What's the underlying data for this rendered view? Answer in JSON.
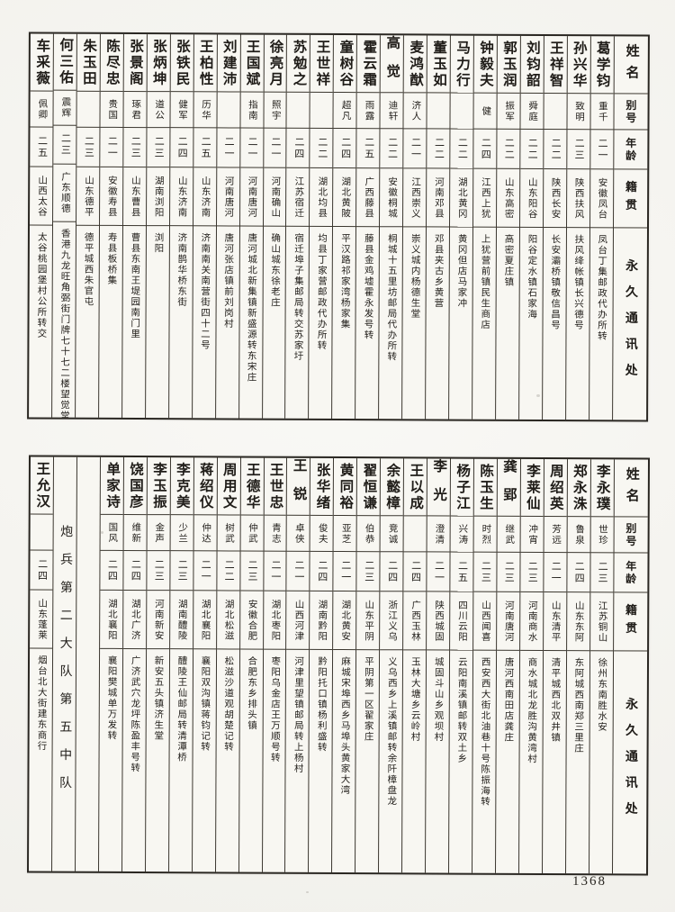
{
  "page_number": "1368",
  "column_headers": {
    "name": "姓名",
    "alias": "别号",
    "age": "年龄",
    "native_place": "籍贯",
    "address": "永久通讯处"
  },
  "tables": [
    {
      "persons": [
        {
          "name": "葛学钧",
          "alias": "重千",
          "age": "二一",
          "native_place": "安徽凤台",
          "address": "凤台丁集邮政代办所转"
        },
        {
          "name": "孙兴华",
          "alias": "致明",
          "age": "二三",
          "native_place": "陕西扶风",
          "address": "扶风绛帐镇长兴德号"
        },
        {
          "name": "王祥智",
          "alias": "",
          "age": "二二",
          "native_place": "陕西长安",
          "address": "长安灞桥镇敬信昌号"
        },
        {
          "name": "刘钧韶",
          "alias": "舜庭",
          "age": "二二",
          "native_place": "山东阳谷",
          "address": "阳谷定水镇石家海"
        },
        {
          "name": "郭玉润",
          "alias": "振军",
          "age": "二二",
          "native_place": "山东高密",
          "address": "高密夏庄镇"
        },
        {
          "name": "钟毅夫",
          "alias": "健",
          "age": "二四",
          "native_place": "江西上犹",
          "address": "上犹营前镇民生商店"
        },
        {
          "name": "马力行",
          "alias": "",
          "age": "二二",
          "native_place": "湖北黄冈",
          "address": "黄冈但店马家冲"
        },
        {
          "name": "董玉如",
          "alias": "",
          "age": "二二",
          "native_place": "河南邓县",
          "address": "邓县夹古乡黄营"
        },
        {
          "name": "麦鸿猷",
          "alias": "济人",
          "age": "二一",
          "native_place": "江西崇义",
          "address": "崇义城内杨德生堂"
        },
        {
          "name": "高觉",
          "alias": "迪轩",
          "age": "二二",
          "native_place": "安徽桐城",
          "address": "桐城十五里坊邮局代办所转"
        },
        {
          "name": "霍云霜",
          "alias": "雨露",
          "age": "二五",
          "native_place": "广西藤县",
          "address": "藤县金鸡墟霍永发号转"
        },
        {
          "name": "童树谷",
          "alias": "超凡",
          "age": "二四",
          "native_place": "湖北黄陂",
          "address": "平汉路祁家湾杨家集"
        },
        {
          "name": "王世祥",
          "alias": "",
          "age": "二二",
          "native_place": "湖北均县",
          "address": "均县丁家营邮政代办所转"
        },
        {
          "name": "苏勉之",
          "alias": "",
          "age": "二四",
          "native_place": "江苏宿迁",
          "address": "宿迁埠子集邮局转交苏家圩"
        },
        {
          "name": "徐亮月",
          "alias": "照宇",
          "age": "二一",
          "native_place": "河南确山",
          "address": "确山城东徐老庄"
        },
        {
          "name": "王国斌",
          "alias": "指南",
          "age": "二一",
          "native_place": "河南唐河",
          "address": "唐河城北新集镇新盛源转东宋庄"
        },
        {
          "name": "刘建沛",
          "alias": "",
          "age": "二一",
          "native_place": "河南唐河",
          "address": "唐河张店镇前刘岗村"
        },
        {
          "name": "王柏性",
          "alias": "历华",
          "age": "二五",
          "native_place": "山东济南",
          "address": "济南南关南营街四十二号"
        },
        {
          "name": "张铁民",
          "alias": "健军",
          "age": "二四",
          "native_place": "山东济南",
          "address": "济南鹊华桥东街"
        },
        {
          "name": "张炳坤",
          "alias": "道公",
          "age": "二三",
          "native_place": "湖南浏阳",
          "address": "浏阳"
        },
        {
          "name": "张景阁",
          "alias": "琢君",
          "age": "二三",
          "native_place": "山东曹县",
          "address": "曹县东南王堤园南门里"
        },
        {
          "name": "陈尽忠",
          "alias": "贵国",
          "age": "二一",
          "native_place": "安徽寿县",
          "address": "寿县板桥集"
        },
        {
          "name": "朱玉田",
          "alias": "",
          "age": "二三",
          "native_place": "山东德平",
          "address": "德平城西朱官屯"
        },
        {
          "name": "何三佑",
          "alias": "震辉",
          "age": "二三",
          "native_place": "广东顺德",
          "address": "香港九龙旺角弼街门牌七十七二楼望觉堂"
        },
        {
          "name": "车采薇",
          "alias": "佩卿",
          "age": "二五",
          "native_place": "山西太谷",
          "address": "太谷桃园堡村公所转交"
        }
      ]
    },
    {
      "persons": [
        {
          "name": "李永璞",
          "alias": "世珍",
          "age": "二三",
          "native_place": "江苏铜山",
          "address": "徐州东南胜水安"
        },
        {
          "name": "郑永洙",
          "alias": "鲁泉",
          "age": "二四",
          "native_place": "山东东阿",
          "address": "东阿城西南郑三里庄"
        },
        {
          "name": "周绍英",
          "alias": "芳远",
          "age": "二一",
          "native_place": "山东清平",
          "address": "清平城西北双井镇"
        },
        {
          "name": "李莱仙",
          "alias": "冲宵",
          "age": "二三",
          "native_place": "河南商水",
          "address": "商水城北龙胜沟黄湾村"
        },
        {
          "name": "龚郢",
          "alias": "继武",
          "age": "二三",
          "native_place": "河南唐河",
          "address": "唐河西南田店龚庄"
        },
        {
          "name": "陈玉生",
          "alias": "时烈",
          "age": "二三",
          "native_place": "山西闻喜",
          "address": "西安西大街北油巷十号陈振海转"
        },
        {
          "name": "杨子江",
          "alias": "兴涛",
          "age": "二五",
          "native_place": "四川云阳",
          "address": "云阳南溪镇邮转双土乡"
        },
        {
          "name": "李光",
          "alias": "澄清",
          "age": "二一",
          "native_place": "陕西城固",
          "address": "城固斗山乡观坝村"
        },
        {
          "name": "王以成",
          "alias": "",
          "age": "二四",
          "native_place": "广西玉林",
          "address": "玉林大塘乡云岭村"
        },
        {
          "name": "余懿樟",
          "alias": "竞诚",
          "age": "二四",
          "native_place": "浙江义乌",
          "address": "义乌西乡上溪镇邮转余阡樟盘龙"
        },
        {
          "name": "翟恒谦",
          "alias": "伯恭",
          "age": "二三",
          "native_place": "山东平阴",
          "address": "平阴第一区翟家庄"
        },
        {
          "name": "黄同裕",
          "alias": "亚芝",
          "age": "二一",
          "native_place": "湖北黄安",
          "address": "麻城宋埠西乡马埠头黄家大湾"
        },
        {
          "name": "张华绪",
          "alias": "俊夫",
          "age": "二四",
          "native_place": "湖南黔阳",
          "address": "黔阳托口镇杨利盛转"
        },
        {
          "name": "王锐",
          "alias": "卓侠",
          "age": "二一",
          "native_place": "山西河津",
          "address": "河津里望镇邮局转上杨村"
        },
        {
          "name": "王世忠",
          "alias": "青志",
          "age": "二一",
          "native_place": "湖北枣阳",
          "address": "枣阳乌金店王万顺号转"
        },
        {
          "name": "王德华",
          "alias": "仲武",
          "age": "二三",
          "native_place": "安徽合肥",
          "address": "合肥东乡排头镇"
        },
        {
          "name": "周用文",
          "alias": "树武",
          "age": "二二",
          "native_place": "湖北松滋",
          "address": "松滋沙道观胡楚记转"
        },
        {
          "name": "蒋绍仪",
          "alias": "仲达",
          "age": "二一",
          "native_place": "湖北襄阳",
          "address": "襄阳双沟镇蒋钧记转"
        },
        {
          "name": "李克美",
          "alias": "少兰",
          "age": "二三",
          "native_place": "湖南醴陵",
          "address": "醴陵王仙邮局转清潭桥"
        },
        {
          "name": "李玉振",
          "alias": "金声",
          "age": "二三",
          "native_place": "河南新安",
          "address": "新安五头镇济生堂"
        },
        {
          "name": "饶国彦",
          "alias": "维新",
          "age": "二四",
          "native_place": "湖北广济",
          "address": "广济武穴龙坪陈盈丰号转"
        },
        {
          "name": "单家诗",
          "alias": "国风",
          "age": "二四",
          "native_place": "湖北襄阳",
          "address": "襄阳樊城单万发转"
        }
      ],
      "section_divider": "炮兵第二大队第五中队",
      "section_first_person": {
        "name": "王允汉",
        "alias": "",
        "age": "二四",
        "native_place": "山东蓬莱",
        "address": "烟台北大街建东商行"
      }
    }
  ]
}
